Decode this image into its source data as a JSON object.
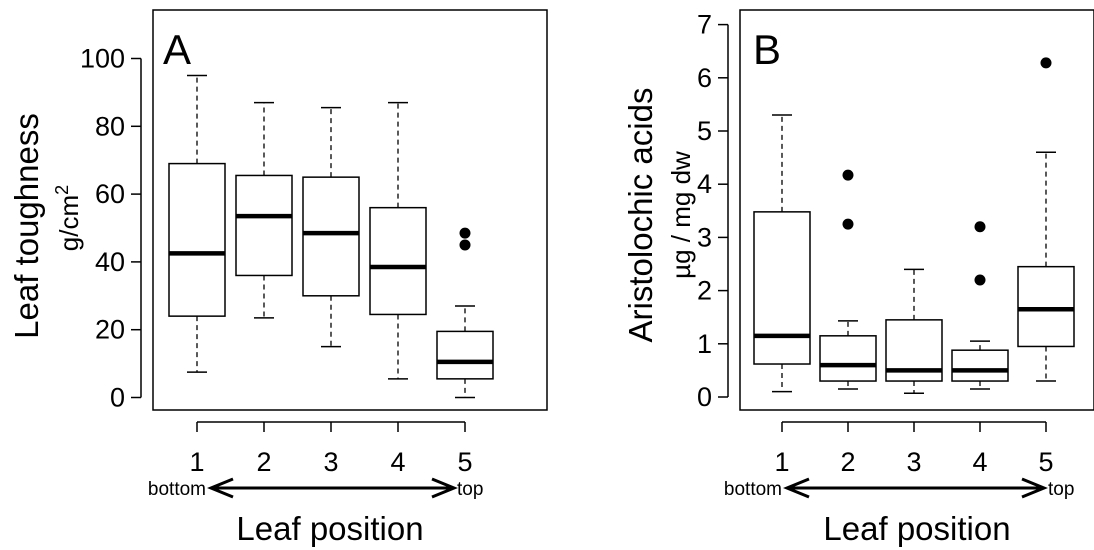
{
  "chart_data": [
    {
      "type": "box",
      "panel_label": "A",
      "ylabel": "Leaf toughness",
      "ylabel_unit": "g/cm²",
      "ylabel_unit_base": "g/cm",
      "ylabel_unit_sup": "2",
      "xlabel": "Leaf position",
      "categories": [
        "1",
        "2",
        "3",
        "4",
        "5"
      ],
      "direction_left": "bottom",
      "direction_right": "top",
      "ylim": [
        0,
        115
      ],
      "yticks": [
        0,
        20,
        40,
        60,
        80,
        100
      ],
      "boxes": [
        {
          "category": "1",
          "whisker_low": 7.5,
          "q1": 24,
          "median": 42.5,
          "q3": 69,
          "whisker_high": 95,
          "outliers": []
        },
        {
          "category": "2",
          "whisker_low": 23.5,
          "q1": 36,
          "median": 53.5,
          "q3": 65.5,
          "whisker_high": 87,
          "outliers": []
        },
        {
          "category": "3",
          "whisker_low": 15,
          "q1": 30,
          "median": 48.5,
          "q3": 65,
          "whisker_high": 85.5,
          "outliers": []
        },
        {
          "category": "4",
          "whisker_low": 5.5,
          "q1": 24.5,
          "median": 38.5,
          "q3": 56,
          "whisker_high": 87,
          "outliers": []
        },
        {
          "category": "5",
          "whisker_low": 0,
          "q1": 5.5,
          "median": 10.5,
          "q3": 19.5,
          "whisker_high": 27,
          "outliers": [
            45,
            48.5
          ]
        }
      ]
    },
    {
      "type": "box",
      "panel_label": "B",
      "ylabel": "Aristolochic acids",
      "ylabel_unit": "µg / mg dw",
      "xlabel": "Leaf position",
      "categories": [
        "1",
        "2",
        "3",
        "4",
        "5"
      ],
      "direction_left": "bottom",
      "direction_right": "top",
      "ylim": [
        0,
        7.2
      ],
      "yticks": [
        0,
        1,
        2,
        3,
        4,
        5,
        6,
        7
      ],
      "boxes": [
        {
          "category": "1",
          "whisker_low": 0.1,
          "q1": 0.62,
          "median": 1.15,
          "q3": 3.48,
          "whisker_high": 5.3,
          "outliers": []
        },
        {
          "category": "2",
          "whisker_low": 0.15,
          "q1": 0.3,
          "median": 0.6,
          "q3": 1.15,
          "whisker_high": 1.43,
          "outliers": [
            3.25,
            4.17
          ]
        },
        {
          "category": "3",
          "whisker_low": 0.07,
          "q1": 0.3,
          "median": 0.5,
          "q3": 1.45,
          "whisker_high": 2.4,
          "outliers": []
        },
        {
          "category": "4",
          "whisker_low": 0.15,
          "q1": 0.3,
          "median": 0.5,
          "q3": 0.88,
          "whisker_high": 1.05,
          "outliers": [
            2.2,
            3.2
          ]
        },
        {
          "category": "5",
          "whisker_low": 0.3,
          "q1": 0.95,
          "median": 1.65,
          "q3": 2.45,
          "whisker_high": 4.6,
          "outliers": [
            6.28
          ]
        }
      ]
    }
  ]
}
